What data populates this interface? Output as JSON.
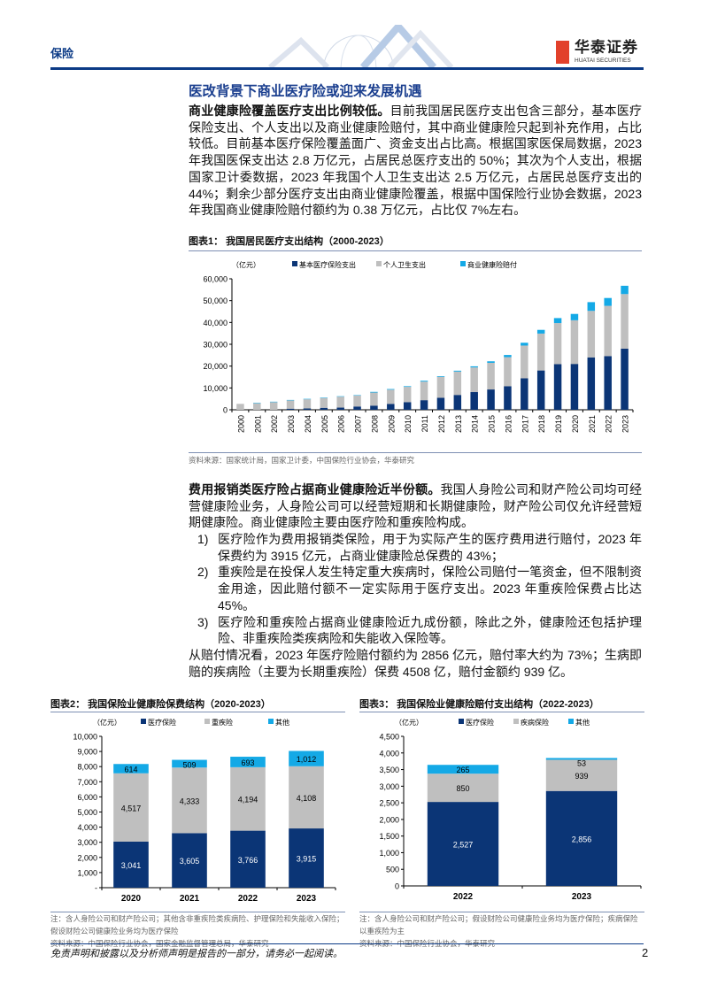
{
  "header": {
    "section": "保险",
    "logo_cn": "华泰证券",
    "logo_en": "HUATAI SECURITIES"
  },
  "section_title": "医改背景下商业医疗险或迎来发展机遇",
  "para1": {
    "lead": "商业健康险覆盖医疗支出比例较低。",
    "body": "目前我国居民医疗支出包含三部分，基本医疗保险支出、个人支出以及商业健康险赔付，其中商业健康险只起到补充作用，占比较低。目前基本医疗保险覆盖面广、资金支出占比高。根据国家医保局数据，2023 年我国医保支出达 2.8 万亿元，占居民总医疗支出的 50%；其次为个人支出，根据国家卫计委数据，2023 年我国个人卫生支出达 2.5 万亿元，占居民总医疗支出的 44%；剩余少部分医疗支出由商业健康险覆盖，根据中国保险行业协会数据，2023 年我国商业健康险赔付额约为 0.38 万亿元，占比仅 7%左右。"
  },
  "para2": {
    "lead": "费用报销类医疗险占据商业健康险近半份额。",
    "body": "我国人身险公司和财产险公司均可经营健康险业务，人身险公司可以经营短期和长期健康险，财产险公司仅允许经营短期健康险。商业健康险主要由医疗险和重疾险构成。",
    "items": [
      {
        "num": "1)",
        "text": "医疗险作为费用报销类保险，用于为实际产生的医疗费用进行赔付，2023 年保费约为 3915 亿元，占商业健康险总保费的 43%；"
      },
      {
        "num": "2)",
        "text": "重疾险是在投保人发生特定重大疾病时，保险公司赔付一笔资金，但不限制资金用途，因此赔付额不一定实际用于医疗支出。2023 年重疾险保费占比达 45%。"
      },
      {
        "num": "3)",
        "text": "医疗险和重疾险占据商业健康险近九成份额，除此之外，健康险还包括护理险、非重疾险类疾病险和失能收入保险等。"
      }
    ],
    "closing": "从赔付情况看，2023 年医疗险赔付额约为 2856 亿元，赔付率大约为 73%；生病即赔的疾病险（主要为长期重疾险）保费 4508 亿，赔付金额约 939 亿。"
  },
  "figures": [
    {
      "title": "图表1：  我国居民医疗支出结构（2000-2023）",
      "source": "资料来源：国家统计局，国家卫计委，中国保险行业协会，华泰研究"
    },
    {
      "title": "图表2：  我国保险业健康险保费结构（2020-2023）",
      "note": "注：含人身险公司和财产险公司；其他含非重疾险类疾病险、护理保险和失能收入保险；假设财险公司健康险业务均为医疗保险",
      "source": "资料来源：中国保险行业协会，国家金融监督管理总局，华泰研究"
    },
    {
      "title": "图表3：  我国保险业健康险赔付支出结构（2022-2023）",
      "note": "注：含人身险公司和财产险公司；假设财险公司健康险业务均为医疗保险；疾病保险以重疾险为主",
      "source": "资料来源：中国保险行业协会，华泰研究"
    }
  ],
  "chart_data": [
    {
      "type": "bar",
      "stacked": true,
      "unit_label": "（亿元）",
      "categories": [
        "2000",
        "2001",
        "2002",
        "2003",
        "2004",
        "2005",
        "2006",
        "2007",
        "2008",
        "2009",
        "2010",
        "2011",
        "2012",
        "2013",
        "2014",
        "2015",
        "2016",
        "2017",
        "2018",
        "2019",
        "2020",
        "2021",
        "2022",
        "2023"
      ],
      "series": [
        {
          "name": "基本医疗保险支出",
          "color": "#0b3576",
          "values": [
            0,
            0,
            0,
            500,
            600,
            900,
            1000,
            1500,
            1900,
            2700,
            3500,
            4400,
            5500,
            6800,
            8100,
            9300,
            10800,
            14400,
            18000,
            20900,
            21000,
            24000,
            24600,
            28000
          ]
        },
        {
          "name": "个人卫生支出",
          "color": "#bfbfbf",
          "values": [
            2700,
            3000,
            3500,
            3800,
            4200,
            4500,
            5000,
            5000,
            6000,
            6500,
            7000,
            8500,
            9600,
            10700,
            11300,
            12200,
            13300,
            15000,
            16900,
            18800,
            20000,
            21300,
            23000,
            25000
          ]
        },
        {
          "name": "商业健康险赔付",
          "color": "#14a9e6",
          "values": [
            0,
            200,
            200,
            200,
            200,
            200,
            200,
            200,
            300,
            300,
            300,
            400,
            300,
            400,
            500,
            700,
            1000,
            1300,
            1700,
            2300,
            2900,
            4000,
            3600,
            3800
          ]
        }
      ],
      "ylim": [
        0,
        60000
      ],
      "yticks": [
        "0",
        "10,000",
        "20,000",
        "30,000",
        "40,000",
        "50,000",
        "60,000"
      ],
      "legend": "top",
      "grid": false
    },
    {
      "type": "bar",
      "stacked": true,
      "unit_label": "（亿元）",
      "categories": [
        "2020",
        "2021",
        "2022",
        "2023"
      ],
      "series": [
        {
          "name": "医疗保险",
          "color": "#0b3576",
          "values": [
            3041,
            3605,
            3766,
            3915
          ]
        },
        {
          "name": "重疾险",
          "color": "#bfbfbf",
          "values": [
            4517,
            4333,
            4194,
            4108
          ]
        },
        {
          "name": "其他",
          "color": "#14a9e6",
          "values": [
            614,
            509,
            693,
            1012
          ]
        }
      ],
      "ylim": [
        0,
        10000
      ],
      "yticks": [
        "-",
        "1,000",
        "2,000",
        "3,000",
        "4,000",
        "5,000",
        "6,000",
        "7,000",
        "8,000",
        "9,000",
        "10,000"
      ],
      "data_labels": true,
      "legend": "top",
      "grid": false
    },
    {
      "type": "bar",
      "stacked": true,
      "unit_label": "（亿元）",
      "categories": [
        "2022",
        "2023"
      ],
      "series": [
        {
          "name": "医疗保险",
          "color": "#0b3576",
          "values": [
            2527,
            2856
          ]
        },
        {
          "name": "疾病保险",
          "color": "#bfbfbf",
          "values": [
            850,
            939
          ]
        },
        {
          "name": "其他",
          "color": "#14a9e6",
          "values": [
            265,
            53
          ]
        }
      ],
      "ylim": [
        0,
        4500
      ],
      "yticks": [
        "0",
        "500",
        "1,000",
        "1,500",
        "2,000",
        "2,500",
        "3,000",
        "3,500",
        "4,000",
        "4,500"
      ],
      "data_labels": true,
      "legend": "top",
      "grid": false
    }
  ],
  "footer": {
    "disclaimer": "免责声明和披露以及分析师声明是报告的一部分，请务必一起阅读。",
    "page": "2"
  }
}
